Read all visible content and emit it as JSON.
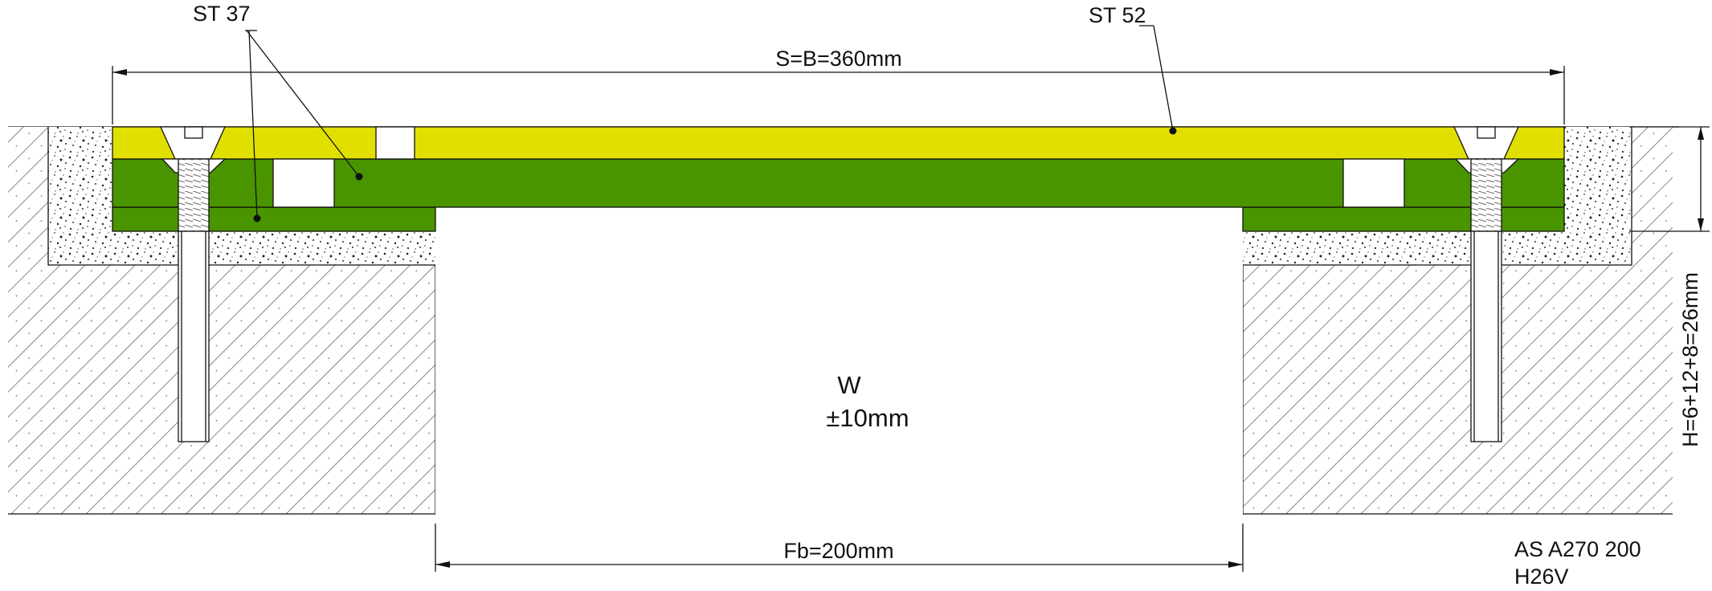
{
  "drawing": {
    "material_top_label": "ST 37",
    "material_plate_label": "ST 52",
    "width_dimension": "S=B=360mm",
    "height_dimension": "H=6+12+8=26mm",
    "gap_label": "W",
    "gap_tolerance": "±10mm",
    "gap_width_dimension": "Fb=200mm",
    "product_code": "AS A270 200",
    "product_variant": "H26V"
  },
  "colors": {
    "top_plate": "#e0df00",
    "base_plates": "#4a9400",
    "outline": "#111111"
  }
}
